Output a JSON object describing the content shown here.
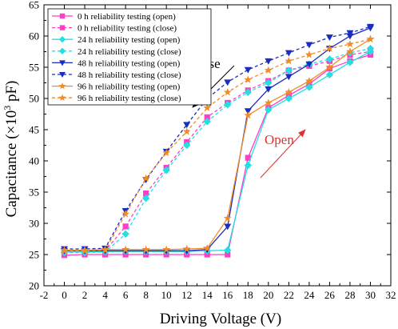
{
  "chart_data": {
    "type": "line",
    "title": "",
    "xlabel": "Driving Voltage (V)",
    "ylabel_main": "Capacitance (×10",
    "ylabel_sup": "3",
    "ylabel_tail": " pF)",
    "xlim": [
      -2,
      32
    ],
    "ylim": [
      20,
      65
    ],
    "xticks": [
      -2,
      0,
      2,
      4,
      6,
      8,
      10,
      12,
      14,
      16,
      18,
      20,
      22,
      24,
      26,
      28,
      30,
      32
    ],
    "yticks": [
      20,
      25,
      30,
      35,
      40,
      45,
      50,
      55,
      60,
      65
    ],
    "grid": false,
    "legend_position": "top-left",
    "x": [
      0,
      2,
      4,
      6,
      8,
      10,
      12,
      14,
      16,
      18,
      20,
      22,
      24,
      26,
      28,
      30
    ],
    "series": [
      {
        "name": "0 h reliability testing (open)",
        "color": "#ff3cc8",
        "marker": "square",
        "dash": false,
        "values": [
          24.9,
          25.0,
          25.0,
          25.0,
          25.0,
          25.0,
          25.0,
          25.0,
          25.0,
          40.5,
          48.5,
          50.5,
          52.3,
          54.8,
          56.0,
          57.0
        ]
      },
      {
        "name": "0 h reliability testing (close)",
        "color": "#ff3cc8",
        "marker": "square",
        "dash": true,
        "values": [
          25.5,
          25.5,
          25.6,
          29.5,
          34.8,
          38.9,
          43.0,
          47.0,
          49.3,
          51.3,
          52.8,
          54.5,
          55.2,
          56.0,
          57.0,
          57.5
        ]
      },
      {
        "name": "24 h reliability testing (open)",
        "color": "#22e0e0",
        "marker": "diamond",
        "dash": false,
        "values": [
          25.4,
          25.4,
          25.5,
          25.5,
          25.5,
          25.5,
          25.5,
          25.6,
          25.7,
          39.3,
          48.2,
          50.0,
          51.8,
          53.8,
          55.8,
          57.5
        ]
      },
      {
        "name": "24 h reliability testing (close)",
        "color": "#22e0e0",
        "marker": "diamond",
        "dash": true,
        "values": [
          25.3,
          25.3,
          25.4,
          28.3,
          34.0,
          38.5,
          42.5,
          46.3,
          49.0,
          51.0,
          52.5,
          54.5,
          55.5,
          56.3,
          57.3,
          58.0
        ]
      },
      {
        "name": "48 h reliability testing (open)",
        "color": "#1a2dbf",
        "marker": "triangle-down",
        "dash": false,
        "values": [
          25.6,
          25.6,
          25.6,
          25.6,
          25.6,
          25.6,
          25.6,
          25.8,
          29.5,
          48.0,
          51.5,
          53.5,
          55.5,
          58.0,
          60.0,
          61.3
        ]
      },
      {
        "name": "48 h reliability testing (close)",
        "color": "#1a2dbf",
        "marker": "triangle-down",
        "dash": true,
        "values": [
          25.9,
          25.9,
          26.0,
          32.0,
          37.0,
          41.5,
          45.8,
          50.0,
          52.6,
          54.6,
          56.0,
          57.3,
          58.6,
          59.8,
          60.5,
          61.5
        ]
      },
      {
        "name": "96 h reliability testing (open)",
        "color": "#f08c28",
        "marker": "star",
        "dash": false,
        "values": [
          25.7,
          25.7,
          25.8,
          25.8,
          25.8,
          25.8,
          25.9,
          26.0,
          30.8,
          47.3,
          49.3,
          51.0,
          52.8,
          55.0,
          57.5,
          59.5
        ]
      },
      {
        "name": "96 h reliability testing (close)",
        "color": "#f08c28",
        "marker": "star",
        "dash": true,
        "values": [
          25.6,
          25.6,
          25.7,
          31.5,
          37.2,
          41.3,
          44.7,
          48.5,
          51.0,
          53.0,
          54.5,
          56.0,
          57.0,
          58.0,
          58.7,
          59.5
        ]
      }
    ],
    "annotations": [
      {
        "text": "Close",
        "color": "#000000"
      },
      {
        "text": "Open",
        "color": "#e03030"
      }
    ]
  }
}
